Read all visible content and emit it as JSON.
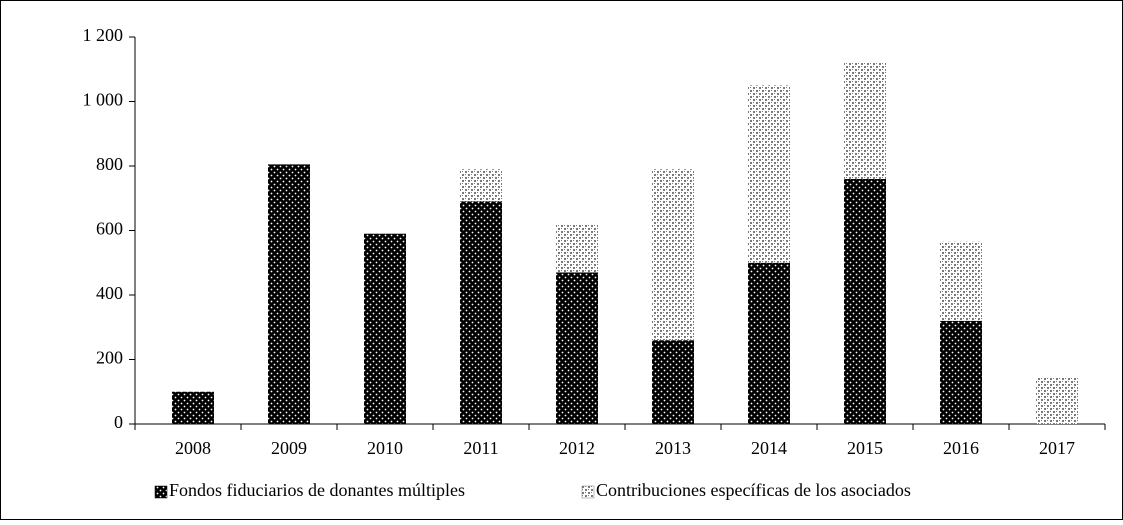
{
  "chart_data": {
    "type": "stacked_bar",
    "categories": [
      "2008",
      "2009",
      "2010",
      "2011",
      "2012",
      "2013",
      "2014",
      "2015",
      "2016",
      "2017"
    ],
    "series": [
      {
        "name": "Fondos fiduciarios de donantes múltiples",
        "color": "#000000",
        "values": [
          100,
          805,
          590,
          690,
          470,
          260,
          500,
          760,
          320,
          0
        ]
      },
      {
        "name": "Contribuciones específicas de los asociados",
        "color": "#7a7a7a",
        "values": [
          0,
          0,
          0,
          100,
          150,
          530,
          550,
          360,
          245,
          145
        ]
      }
    ],
    "ylim": [
      0,
      1200
    ],
    "yticks": [
      0,
      200,
      400,
      600,
      800,
      {
        "value": 1000,
        "label": "1 000"
      },
      {
        "value": 1200,
        "label": "1 200"
      }
    ],
    "legend": "bottom"
  }
}
